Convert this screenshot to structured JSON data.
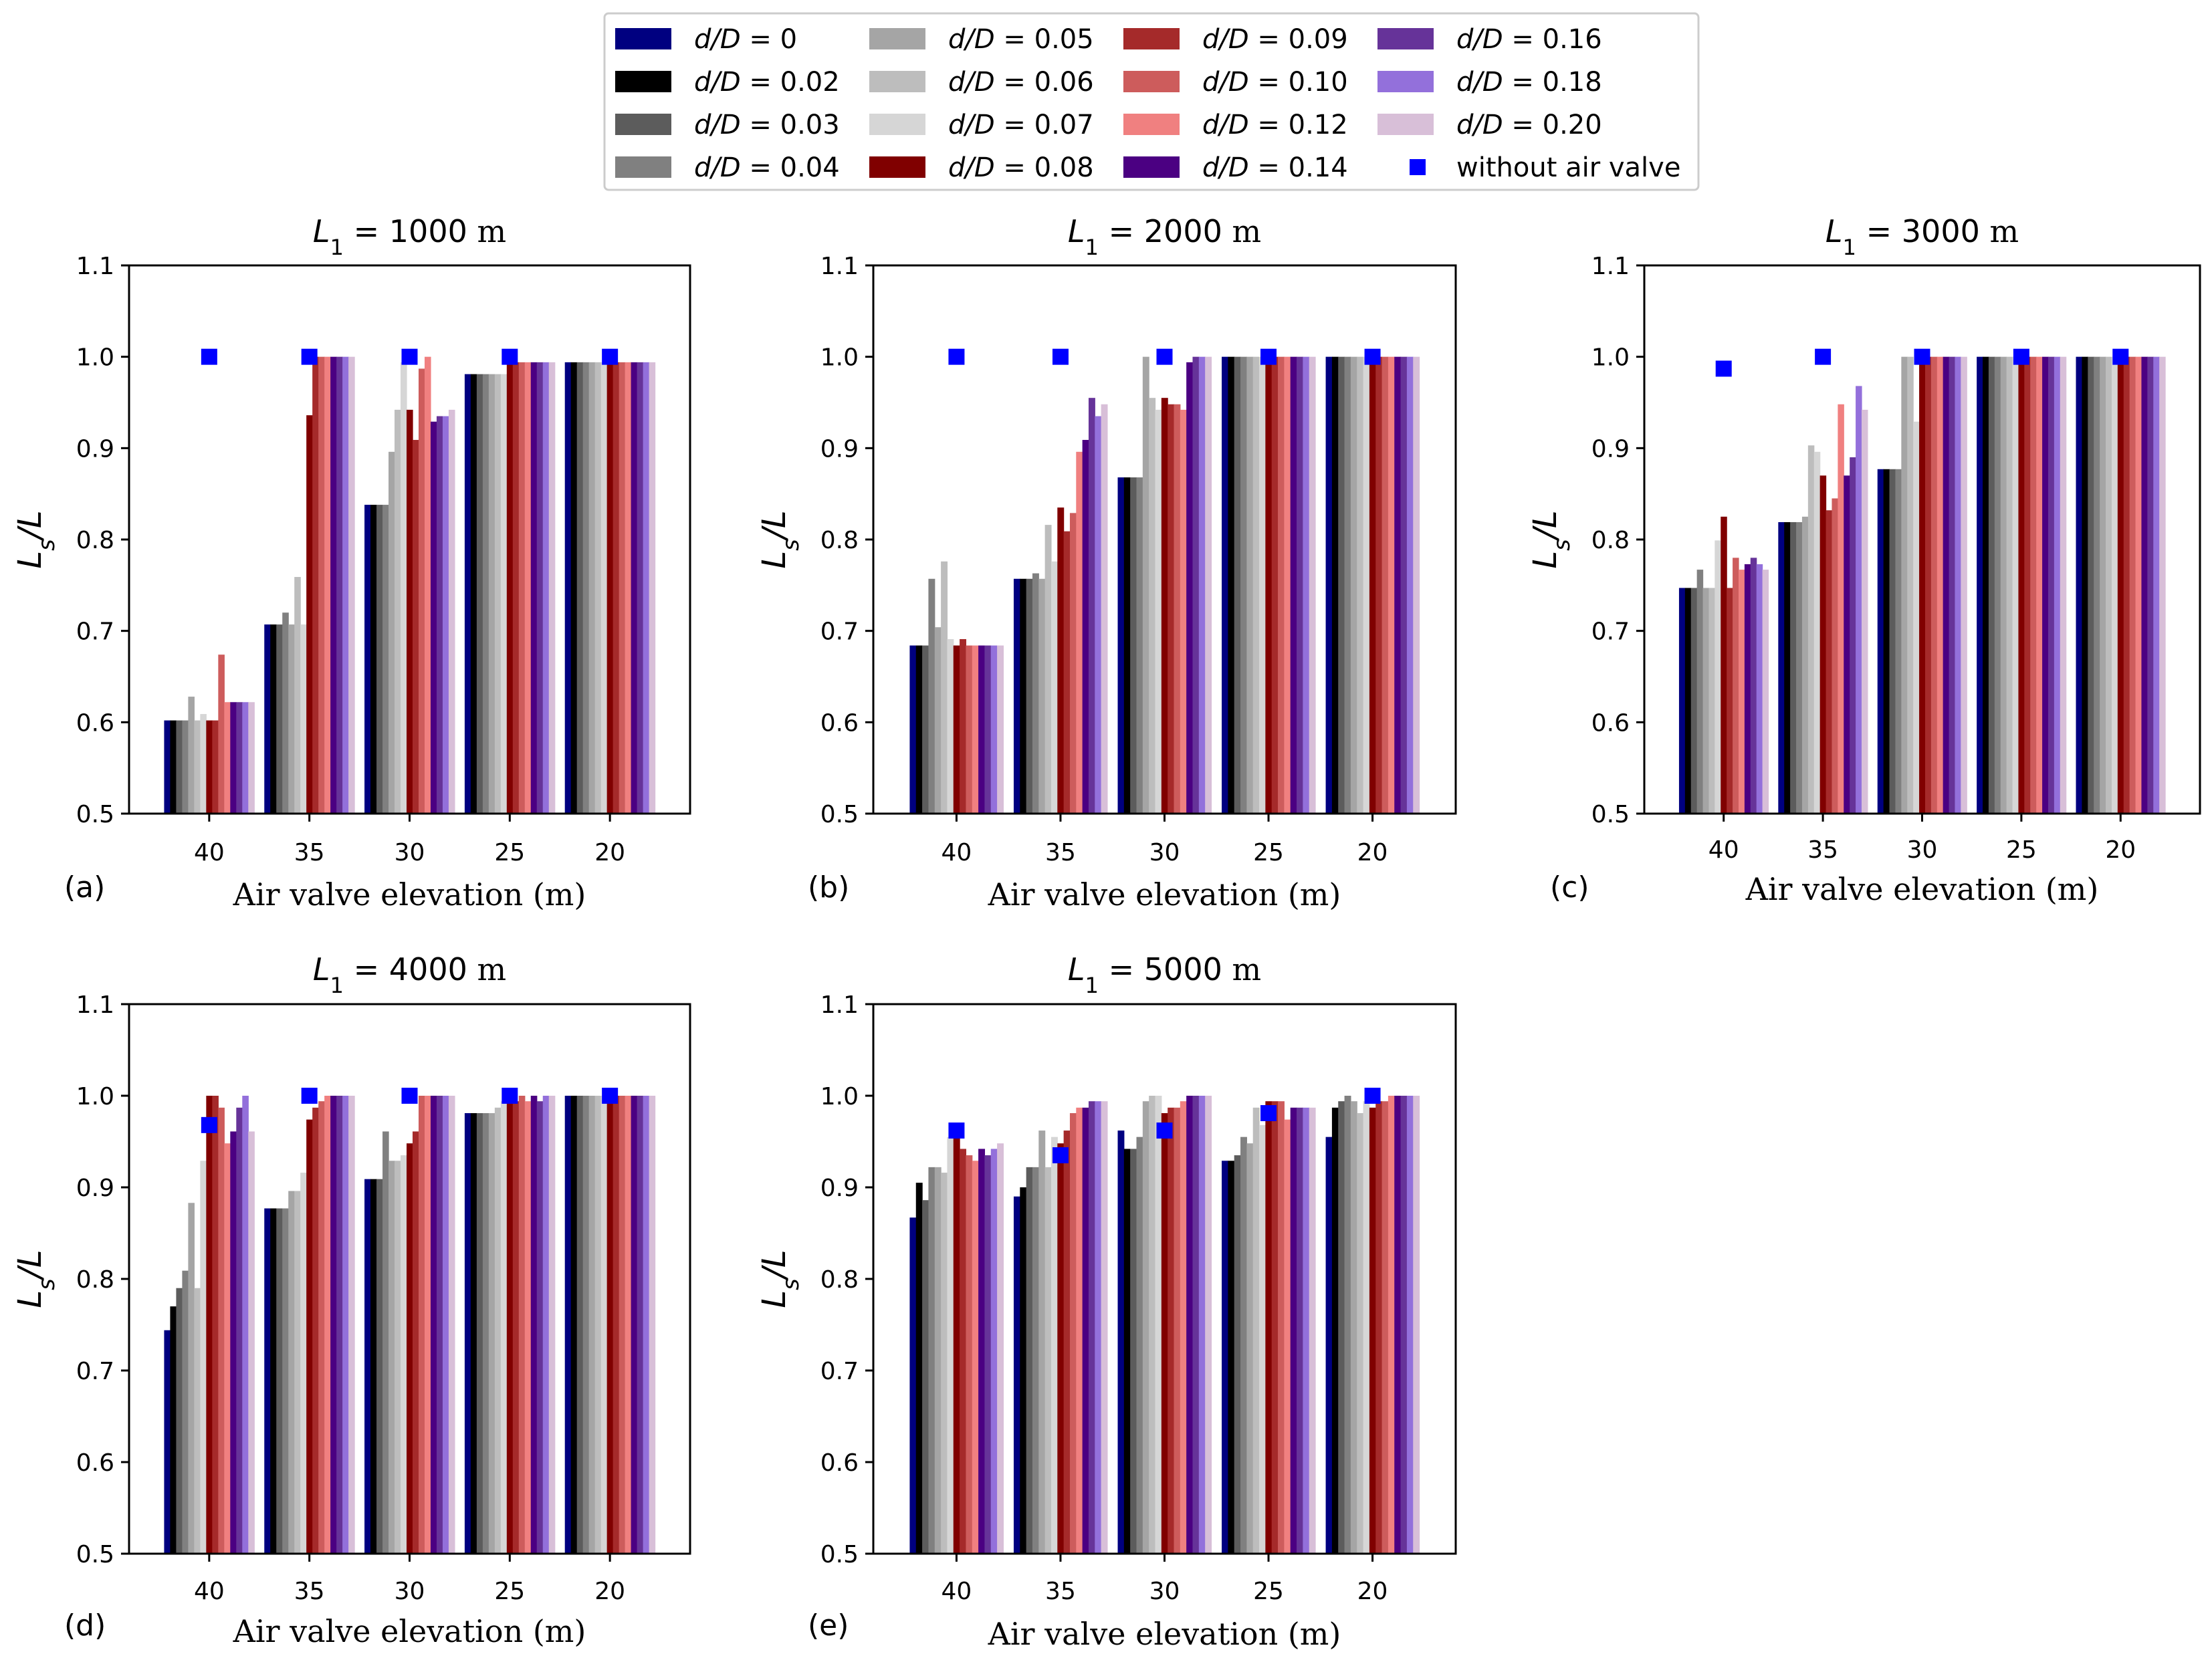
{
  "legend": {
    "position": "top-center",
    "entries": [
      {
        "label": "d/D = 0",
        "color": "#000080"
      },
      {
        "label": "d/D = 0.02",
        "color": "#000000"
      },
      {
        "label": "d/D = 0.03",
        "color": "#5c5c5c"
      },
      {
        "label": "d/D = 0.04",
        "color": "#808080"
      },
      {
        "label": "d/D = 0.05",
        "color": "#a5a5a5"
      },
      {
        "label": "d/D = 0.06",
        "color": "#bdbdbd"
      },
      {
        "label": "d/D = 0.07",
        "color": "#d6d6d6"
      },
      {
        "label": "d/D = 0.08",
        "color": "#800000"
      },
      {
        "label": "d/D = 0.09",
        "color": "#a52a2a"
      },
      {
        "label": "d/D = 0.10",
        "color": "#cd5c5c"
      },
      {
        "label": "d/D = 0.12",
        "color": "#f08080"
      },
      {
        "label": "d/D = 0.14",
        "color": "#4b0082"
      },
      {
        "label": "d/D = 0.16",
        "color": "#663399"
      },
      {
        "label": "d/D = 0.18",
        "color": "#9370db"
      },
      {
        "label": "d/D = 0.20",
        "color": "#d8bfd8"
      },
      {
        "label": "without air valve",
        "color": "#0000ff",
        "marker": "square"
      }
    ]
  },
  "chart_data": [
    {
      "type": "bar",
      "panel": "(a)",
      "title": "L1 = 1000 m",
      "xlabel": "Air valve elevation (m)",
      "ylabel": "Ls/L",
      "categories": [
        "40",
        "35",
        "30",
        "25",
        "20"
      ],
      "ylim": [
        0.5,
        1.1
      ],
      "yticks": [
        "0.5",
        "0.6",
        "0.7",
        "0.8",
        "0.9",
        "1.0",
        "1.1"
      ],
      "series": [
        {
          "name": "d/D = 0",
          "values": [
            0.602,
            0.707,
            0.838,
            0.981,
            0.994
          ]
        },
        {
          "name": "d/D = 0.02",
          "values": [
            0.602,
            0.707,
            0.838,
            0.981,
            0.994
          ]
        },
        {
          "name": "d/D = 0.03",
          "values": [
            0.602,
            0.707,
            0.838,
            0.981,
            0.994
          ]
        },
        {
          "name": "d/D = 0.04",
          "values": [
            0.602,
            0.72,
            0.838,
            0.981,
            0.994
          ]
        },
        {
          "name": "d/D = 0.05",
          "values": [
            0.628,
            0.707,
            0.896,
            0.981,
            0.994
          ]
        },
        {
          "name": "d/D = 0.06",
          "values": [
            0.602,
            0.759,
            0.942,
            0.981,
            0.994
          ]
        },
        {
          "name": "d/D = 0.07",
          "values": [
            0.609,
            0.707,
            0.994,
            0.981,
            0.994
          ]
        },
        {
          "name": "d/D = 0.08",
          "values": [
            0.602,
            0.936,
            0.942,
            0.994,
            0.994
          ]
        },
        {
          "name": "d/D = 0.09",
          "values": [
            0.602,
            1.0,
            0.909,
            0.994,
            0.994
          ]
        },
        {
          "name": "d/D = 0.10",
          "values": [
            0.674,
            1.0,
            0.987,
            0.994,
            0.994
          ]
        },
        {
          "name": "d/D = 0.12",
          "values": [
            0.622,
            1.0,
            1.0,
            0.994,
            0.994
          ]
        },
        {
          "name": "d/D = 0.14",
          "values": [
            0.622,
            1.0,
            0.929,
            0.994,
            0.994
          ]
        },
        {
          "name": "d/D = 0.16",
          "values": [
            0.622,
            1.0,
            0.935,
            0.994,
            0.994
          ]
        },
        {
          "name": "d/D = 0.18",
          "values": [
            0.622,
            1.0,
            0.935,
            0.994,
            0.994
          ]
        },
        {
          "name": "d/D = 0.20",
          "values": [
            0.622,
            1.0,
            0.942,
            0.994,
            0.994
          ]
        }
      ],
      "without_air_valve": [
        1.0,
        1.0,
        1.0,
        1.0,
        1.0
      ]
    },
    {
      "type": "bar",
      "panel": "(b)",
      "title": "L1 = 2000 m",
      "xlabel": "Air valve elevation (m)",
      "ylabel": "Ls/L",
      "categories": [
        "40",
        "35",
        "30",
        "25",
        "20"
      ],
      "ylim": [
        0.5,
        1.1
      ],
      "yticks": [
        "0.5",
        "0.6",
        "0.7",
        "0.8",
        "0.9",
        "1.0",
        "1.1"
      ],
      "series": [
        {
          "name": "d/D = 0",
          "values": [
            0.684,
            0.757,
            0.868,
            1.0,
            1.0
          ]
        },
        {
          "name": "d/D = 0.02",
          "values": [
            0.684,
            0.757,
            0.868,
            1.0,
            1.0
          ]
        },
        {
          "name": "d/D = 0.03",
          "values": [
            0.684,
            0.757,
            0.868,
            1.0,
            1.0
          ]
        },
        {
          "name": "d/D = 0.04",
          "values": [
            0.757,
            0.763,
            0.868,
            1.0,
            1.0
          ]
        },
        {
          "name": "d/D = 0.05",
          "values": [
            0.704,
            0.757,
            1.0,
            1.0,
            1.0
          ]
        },
        {
          "name": "d/D = 0.06",
          "values": [
            0.776,
            0.816,
            0.955,
            1.0,
            1.0
          ]
        },
        {
          "name": "d/D = 0.07",
          "values": [
            0.691,
            0.776,
            0.942,
            1.0,
            1.0
          ]
        },
        {
          "name": "d/D = 0.08",
          "values": [
            0.684,
            0.835,
            0.955,
            1.0,
            1.0
          ]
        },
        {
          "name": "d/D = 0.09",
          "values": [
            0.691,
            0.809,
            0.948,
            1.0,
            1.0
          ]
        },
        {
          "name": "d/D = 0.10",
          "values": [
            0.684,
            0.829,
            0.948,
            1.0,
            1.0
          ]
        },
        {
          "name": "d/D = 0.12",
          "values": [
            0.684,
            0.896,
            0.942,
            1.0,
            1.0
          ]
        },
        {
          "name": "d/D = 0.14",
          "values": [
            0.684,
            0.909,
            0.994,
            1.0,
            1.0
          ]
        },
        {
          "name": "d/D = 0.16",
          "values": [
            0.684,
            0.955,
            1.0,
            1.0,
            1.0
          ]
        },
        {
          "name": "d/D = 0.18",
          "values": [
            0.684,
            0.935,
            1.0,
            1.0,
            1.0
          ]
        },
        {
          "name": "d/D = 0.20",
          "values": [
            0.684,
            0.948,
            1.0,
            1.0,
            1.0
          ]
        }
      ],
      "without_air_valve": [
        1.0,
        1.0,
        1.0,
        1.0,
        1.0
      ]
    },
    {
      "type": "bar",
      "panel": "(c)",
      "title": "L1 = 3000 m",
      "xlabel": "Air valve elevation (m)",
      "ylabel": "Ls/L",
      "categories": [
        "40",
        "35",
        "30",
        "25",
        "20"
      ],
      "ylim": [
        0.5,
        1.1
      ],
      "yticks": [
        "0.5",
        "0.6",
        "0.7",
        "0.8",
        "0.9",
        "1.0",
        "1.1"
      ],
      "series": [
        {
          "name": "d/D = 0",
          "values": [
            0.747,
            0.819,
            0.877,
            1.0,
            1.0
          ]
        },
        {
          "name": "d/D = 0.02",
          "values": [
            0.747,
            0.819,
            0.877,
            1.0,
            1.0
          ]
        },
        {
          "name": "d/D = 0.03",
          "values": [
            0.747,
            0.819,
            0.877,
            1.0,
            1.0
          ]
        },
        {
          "name": "d/D = 0.04",
          "values": [
            0.767,
            0.819,
            0.877,
            1.0,
            1.0
          ]
        },
        {
          "name": "d/D = 0.05",
          "values": [
            0.747,
            0.825,
            1.0,
            1.0,
            1.0
          ]
        },
        {
          "name": "d/D = 0.06",
          "values": [
            0.747,
            0.903,
            1.0,
            1.0,
            1.0
          ]
        },
        {
          "name": "d/D = 0.07",
          "values": [
            0.799,
            0.896,
            0.929,
            1.0,
            1.0
          ]
        },
        {
          "name": "d/D = 0.08",
          "values": [
            0.825,
            0.87,
            1.0,
            1.0,
            1.0
          ]
        },
        {
          "name": "d/D = 0.09",
          "values": [
            0.747,
            0.832,
            1.0,
            1.0,
            1.0
          ]
        },
        {
          "name": "d/D = 0.10",
          "values": [
            0.78,
            0.845,
            1.0,
            1.0,
            1.0
          ]
        },
        {
          "name": "d/D = 0.12",
          "values": [
            0.767,
            0.948,
            1.0,
            1.0,
            1.0
          ]
        },
        {
          "name": "d/D = 0.14",
          "values": [
            0.773,
            0.87,
            1.0,
            1.0,
            1.0
          ]
        },
        {
          "name": "d/D = 0.16",
          "values": [
            0.78,
            0.89,
            1.0,
            1.0,
            1.0
          ]
        },
        {
          "name": "d/D = 0.18",
          "values": [
            0.773,
            0.968,
            1.0,
            1.0,
            1.0
          ]
        },
        {
          "name": "d/D = 0.20",
          "values": [
            0.767,
            0.942,
            1.0,
            1.0,
            1.0
          ]
        }
      ],
      "without_air_valve": [
        0.987,
        1.0,
        1.0,
        1.0,
        1.0
      ]
    },
    {
      "type": "bar",
      "panel": "(d)",
      "title": "L1 = 4000 m",
      "xlabel": "Air valve elevation (m)",
      "ylabel": "Ls/L",
      "categories": [
        "40",
        "35",
        "30",
        "25",
        "20"
      ],
      "ylim": [
        0.5,
        1.1
      ],
      "yticks": [
        "0.5",
        "0.6",
        "0.7",
        "0.8",
        "0.9",
        "1.0",
        "1.1"
      ],
      "series": [
        {
          "name": "d/D = 0",
          "values": [
            0.744,
            0.877,
            0.909,
            0.981,
            1.0
          ]
        },
        {
          "name": "d/D = 0.02",
          "values": [
            0.77,
            0.877,
            0.909,
            0.981,
            1.0
          ]
        },
        {
          "name": "d/D = 0.03",
          "values": [
            0.79,
            0.877,
            0.909,
            0.981,
            1.0
          ]
        },
        {
          "name": "d/D = 0.04",
          "values": [
            0.809,
            0.877,
            0.961,
            0.981,
            1.0
          ]
        },
        {
          "name": "d/D = 0.05",
          "values": [
            0.883,
            0.896,
            0.929,
            0.981,
            1.0
          ]
        },
        {
          "name": "d/D = 0.06",
          "values": [
            0.79,
            0.896,
            0.929,
            0.987,
            1.0
          ]
        },
        {
          "name": "d/D = 0.07",
          "values": [
            0.929,
            0.916,
            0.935,
            0.994,
            1.0
          ]
        },
        {
          "name": "d/D = 0.08",
          "values": [
            1.0,
            0.974,
            0.948,
            0.994,
            1.0
          ]
        },
        {
          "name": "d/D = 0.09",
          "values": [
            1.0,
            0.987,
            0.961,
            0.994,
            1.0
          ]
        },
        {
          "name": "d/D = 0.10",
          "values": [
            0.987,
            0.994,
            1.0,
            1.0,
            1.0
          ]
        },
        {
          "name": "d/D = 0.12",
          "values": [
            0.948,
            1.0,
            1.0,
            0.994,
            1.0
          ]
        },
        {
          "name": "d/D = 0.14",
          "values": [
            0.961,
            1.0,
            1.0,
            1.0,
            1.0
          ]
        },
        {
          "name": "d/D = 0.16",
          "values": [
            0.987,
            1.0,
            1.0,
            0.994,
            1.0
          ]
        },
        {
          "name": "d/D = 0.18",
          "values": [
            1.0,
            1.0,
            1.0,
            1.0,
            1.0
          ]
        },
        {
          "name": "d/D = 0.20",
          "values": [
            0.961,
            1.0,
            1.0,
            1.0,
            1.0
          ]
        }
      ],
      "without_air_valve": [
        0.968,
        1.0,
        1.0,
        1.0,
        1.0
      ]
    },
    {
      "type": "bar",
      "panel": "(e)",
      "title": "L1 = 5000 m",
      "xlabel": "Air valve elevation (m)",
      "ylabel": "Ls/L",
      "categories": [
        "40",
        "35",
        "30",
        "25",
        "20"
      ],
      "ylim": [
        0.5,
        1.1
      ],
      "yticks": [
        "0.5",
        "0.6",
        "0.7",
        "0.8",
        "0.9",
        "1.0",
        "1.1"
      ],
      "series": [
        {
          "name": "d/D = 0",
          "values": [
            0.867,
            0.89,
            0.962,
            0.929,
            0.955
          ]
        },
        {
          "name": "d/D = 0.02",
          "values": [
            0.905,
            0.9,
            0.942,
            0.929,
            0.987
          ]
        },
        {
          "name": "d/D = 0.03",
          "values": [
            0.886,
            0.922,
            0.942,
            0.935,
            0.994
          ]
        },
        {
          "name": "d/D = 0.04",
          "values": [
            0.922,
            0.922,
            0.955,
            0.955,
            1.0
          ]
        },
        {
          "name": "d/D = 0.05",
          "values": [
            0.922,
            0.962,
            0.994,
            0.948,
            0.994
          ]
        },
        {
          "name": "d/D = 0.06",
          "values": [
            0.916,
            0.922,
            1.0,
            0.987,
            0.981
          ]
        },
        {
          "name": "d/D = 0.07",
          "values": [
            0.955,
            0.955,
            1.0,
            0.968,
            0.994
          ]
        },
        {
          "name": "d/D = 0.08",
          "values": [
            0.962,
            0.948,
            0.981,
            0.994,
            0.987
          ]
        },
        {
          "name": "d/D = 0.09",
          "values": [
            0.942,
            0.962,
            0.987,
            0.994,
            0.994
          ]
        },
        {
          "name": "d/D = 0.10",
          "values": [
            0.935,
            0.981,
            0.987,
            0.994,
            0.994
          ]
        },
        {
          "name": "d/D = 0.12",
          "values": [
            0.929,
            0.987,
            0.994,
            0.974,
            1.0
          ]
        },
        {
          "name": "d/D = 0.14",
          "values": [
            0.942,
            0.987,
            1.0,
            0.987,
            1.0
          ]
        },
        {
          "name": "d/D = 0.16",
          "values": [
            0.935,
            0.994,
            1.0,
            0.987,
            1.0
          ]
        },
        {
          "name": "d/D = 0.18",
          "values": [
            0.942,
            0.994,
            1.0,
            0.987,
            1.0
          ]
        },
        {
          "name": "d/D = 0.20",
          "values": [
            0.948,
            0.994,
            1.0,
            0.987,
            1.0
          ]
        }
      ],
      "without_air_valve": [
        0.962,
        0.935,
        0.962,
        0.981,
        1.0
      ]
    }
  ]
}
